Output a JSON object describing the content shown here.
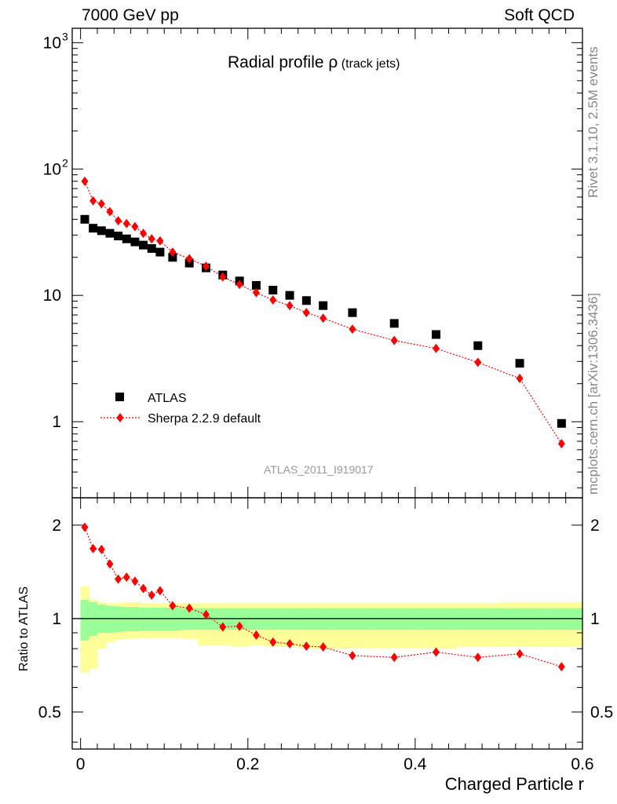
{
  "header": {
    "left": "7000 GeV pp",
    "right": "Soft QCD"
  },
  "plot_title": {
    "main": "Radial profile ",
    "symbol": "ρ",
    "suffix": " (track jets)"
  },
  "analysis_id": "ATLAS_2011_I919017",
  "side_labels": {
    "rivet": "Rivet 3.1.10,  2.5M events",
    "mcplots": "mcplots.cern.ch [arXiv:1306.3436]"
  },
  "colors": {
    "data": "#000000",
    "mc": "#ff0000",
    "band_inner": "#99ff99",
    "band_outer": "#ffff99",
    "analysis_label": "#999999"
  },
  "chart_data": [
    {
      "type": "scatter",
      "panel": "main",
      "yscale": "log",
      "xlim": [
        -0.01,
        0.6
      ],
      "ylim": [
        0.25,
        1300
      ],
      "y_tick_labels": [
        "1",
        "10",
        "10²",
        "10³"
      ],
      "legend_position": "bottom-left",
      "x": [
        0.005,
        0.015,
        0.025,
        0.035,
        0.045,
        0.055,
        0.065,
        0.075,
        0.085,
        0.095,
        0.11,
        0.13,
        0.15,
        0.17,
        0.19,
        0.21,
        0.23,
        0.25,
        0.27,
        0.29,
        0.325,
        0.375,
        0.425,
        0.475,
        0.525,
        0.575
      ],
      "series": [
        {
          "name": "ATLAS",
          "marker": "square",
          "values": [
            40,
            34,
            32.5,
            31,
            29.5,
            28,
            26.5,
            25,
            23.5,
            22,
            20,
            18,
            16.5,
            14.5,
            13,
            12,
            11,
            10,
            9.1,
            8.3,
            7.3,
            6.0,
            4.9,
            4.0,
            2.9,
            0.97
          ]
        },
        {
          "name": "Sherpa 2.2.9 default",
          "marker": "diamond",
          "line": "dotted",
          "values": [
            80,
            56,
            53,
            46,
            39,
            37,
            35,
            31,
            28,
            27,
            22,
            19.5,
            17,
            14,
            12.2,
            10.5,
            9.2,
            8.3,
            7.3,
            6.6,
            5.4,
            4.4,
            3.8,
            2.95,
            2.2,
            0.67
          ]
        }
      ]
    },
    {
      "type": "line",
      "panel": "ratio",
      "yscale": "log",
      "xlabel": "Charged Particle r",
      "ylabel": "Ratio to ATLAS",
      "xlim": [
        -0.01,
        0.6
      ],
      "ylim": [
        0.38,
        2.45
      ],
      "x_tick_labels": [
        "0",
        "0.2",
        "0.4",
        "0.6"
      ],
      "y_tick_labels": [
        "0.5",
        "1",
        "2"
      ],
      "reference_line": 1,
      "band_edges": [
        0,
        0.01,
        0.02,
        0.03,
        0.04,
        0.05,
        0.06,
        0.07,
        0.08,
        0.09,
        0.1,
        0.12,
        0.14,
        0.16,
        0.18,
        0.2,
        0.22,
        0.24,
        0.26,
        0.28,
        0.3,
        0.35,
        0.4,
        0.45,
        0.5,
        0.55,
        0.6
      ],
      "band_inner": {
        "lo": [
          0.85,
          0.88,
          0.9,
          0.9,
          0.905,
          0.91,
          0.91,
          0.915,
          0.915,
          0.915,
          0.915,
          0.92,
          0.92,
          0.92,
          0.92,
          0.92,
          0.92,
          0.92,
          0.92,
          0.92,
          0.92,
          0.92,
          0.92,
          0.92,
          0.92,
          0.92
        ],
        "hi": [
          1.15,
          1.13,
          1.11,
          1.1,
          1.095,
          1.09,
          1.09,
          1.085,
          1.085,
          1.085,
          1.085,
          1.08,
          1.08,
          1.08,
          1.08,
          1.08,
          1.08,
          1.08,
          1.08,
          1.08,
          1.08,
          1.08,
          1.08,
          1.08,
          1.08,
          1.08
        ]
      },
      "band_outer": {
        "lo": [
          0.67,
          0.69,
          0.8,
          0.84,
          0.855,
          0.86,
          0.86,
          0.865,
          0.865,
          0.865,
          0.865,
          0.86,
          0.82,
          0.82,
          0.81,
          0.82,
          0.81,
          0.81,
          0.8,
          0.8,
          0.8,
          0.8,
          0.8,
          0.81,
          0.81,
          0.81
        ],
        "hi": [
          1.27,
          1.15,
          1.13,
          1.12,
          1.125,
          1.13,
          1.13,
          1.12,
          1.12,
          1.12,
          1.12,
          1.12,
          1.12,
          1.12,
          1.12,
          1.12,
          1.12,
          1.12,
          1.12,
          1.12,
          1.12,
          1.12,
          1.12,
          1.12,
          1.13,
          1.13
        ]
      },
      "series": [
        {
          "name": "Sherpa 2.2.9 default",
          "x": [
            0.005,
            0.015,
            0.025,
            0.035,
            0.045,
            0.055,
            0.065,
            0.075,
            0.085,
            0.095,
            0.11,
            0.13,
            0.15,
            0.17,
            0.19,
            0.21,
            0.23,
            0.25,
            0.27,
            0.29,
            0.325,
            0.375,
            0.425,
            0.475,
            0.525,
            0.575
          ],
          "values": [
            1.97,
            1.68,
            1.67,
            1.5,
            1.34,
            1.36,
            1.32,
            1.25,
            1.19,
            1.23,
            1.1,
            1.08,
            1.03,
            0.94,
            0.945,
            0.885,
            0.84,
            0.83,
            0.815,
            0.81,
            0.76,
            0.75,
            0.78,
            0.75,
            0.77,
            0.7
          ]
        }
      ]
    }
  ]
}
